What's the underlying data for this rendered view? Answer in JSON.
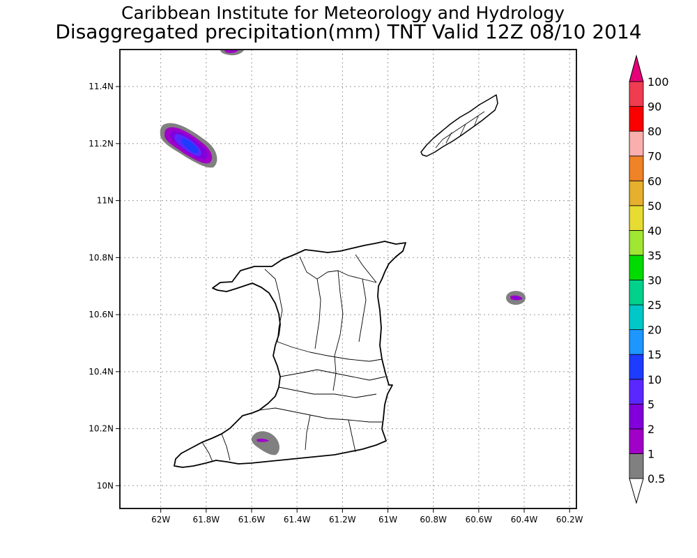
{
  "title": "Caribbean Institute for Meteorology and Hydrology",
  "subtitle": "Disaggregated precipitation(mm) TNT Valid 12Z 08/10 2014",
  "map": {
    "lon_range": [
      -62.18,
      -60.17
    ],
    "lat_range": [
      9.92,
      11.53
    ],
    "x_ticks": [
      {
        "value": -62.0,
        "label": "62W"
      },
      {
        "value": -61.8,
        "label": "61.8W"
      },
      {
        "value": -61.6,
        "label": "61.6W"
      },
      {
        "value": -61.4,
        "label": "61.4W"
      },
      {
        "value": -61.2,
        "label": "61.2W"
      },
      {
        "value": -61.0,
        "label": "61W"
      },
      {
        "value": -60.8,
        "label": "60.8W"
      },
      {
        "value": -60.6,
        "label": "60.6W"
      },
      {
        "value": -60.4,
        "label": "60.4W"
      },
      {
        "value": -60.2,
        "label": "60.2W"
      }
    ],
    "y_ticks": [
      {
        "value": 10.0,
        "label": "10N"
      },
      {
        "value": 10.2,
        "label": "10.2N"
      },
      {
        "value": 10.4,
        "label": "10.4N"
      },
      {
        "value": 10.6,
        "label": "10.6N"
      },
      {
        "value": 10.8,
        "label": "10.8N"
      },
      {
        "value": 11.0,
        "label": "11N"
      },
      {
        "value": 11.2,
        "label": "11.2N"
      },
      {
        "value": 11.4,
        "label": "11.4N"
      }
    ],
    "grid": true
  },
  "colorbar": {
    "levels": [
      "0.5",
      "1",
      "2",
      "5",
      "10",
      "15",
      "20",
      "25",
      "30",
      "35",
      "40",
      "50",
      "60",
      "70",
      "80",
      "90",
      "100"
    ],
    "colors": [
      "#808080",
      "#a000c8",
      "#8200dc",
      "#5a28ff",
      "#1e3cff",
      "#1e96ff",
      "#00c8c8",
      "#00d28c",
      "#00dc00",
      "#a0e632",
      "#e6dc32",
      "#e6af2d",
      "#f08228",
      "#faafaf",
      "#fa0000",
      "#f03c50"
    ],
    "under_color": "#ffffff",
    "over_color": "#e6007a"
  },
  "precip_areas": [
    {
      "name": "northwest cell",
      "lon": -61.85,
      "lat": 11.19,
      "max_level": "10"
    },
    {
      "name": "north edge cell",
      "lon": -61.68,
      "lat": 11.52,
      "max_level": "2"
    },
    {
      "name": "east cell",
      "lon": -60.43,
      "lat": 10.64,
      "max_level": "2"
    },
    {
      "name": "south cell",
      "lon": -61.54,
      "lat": 10.14,
      "max_level": "2"
    }
  ]
}
